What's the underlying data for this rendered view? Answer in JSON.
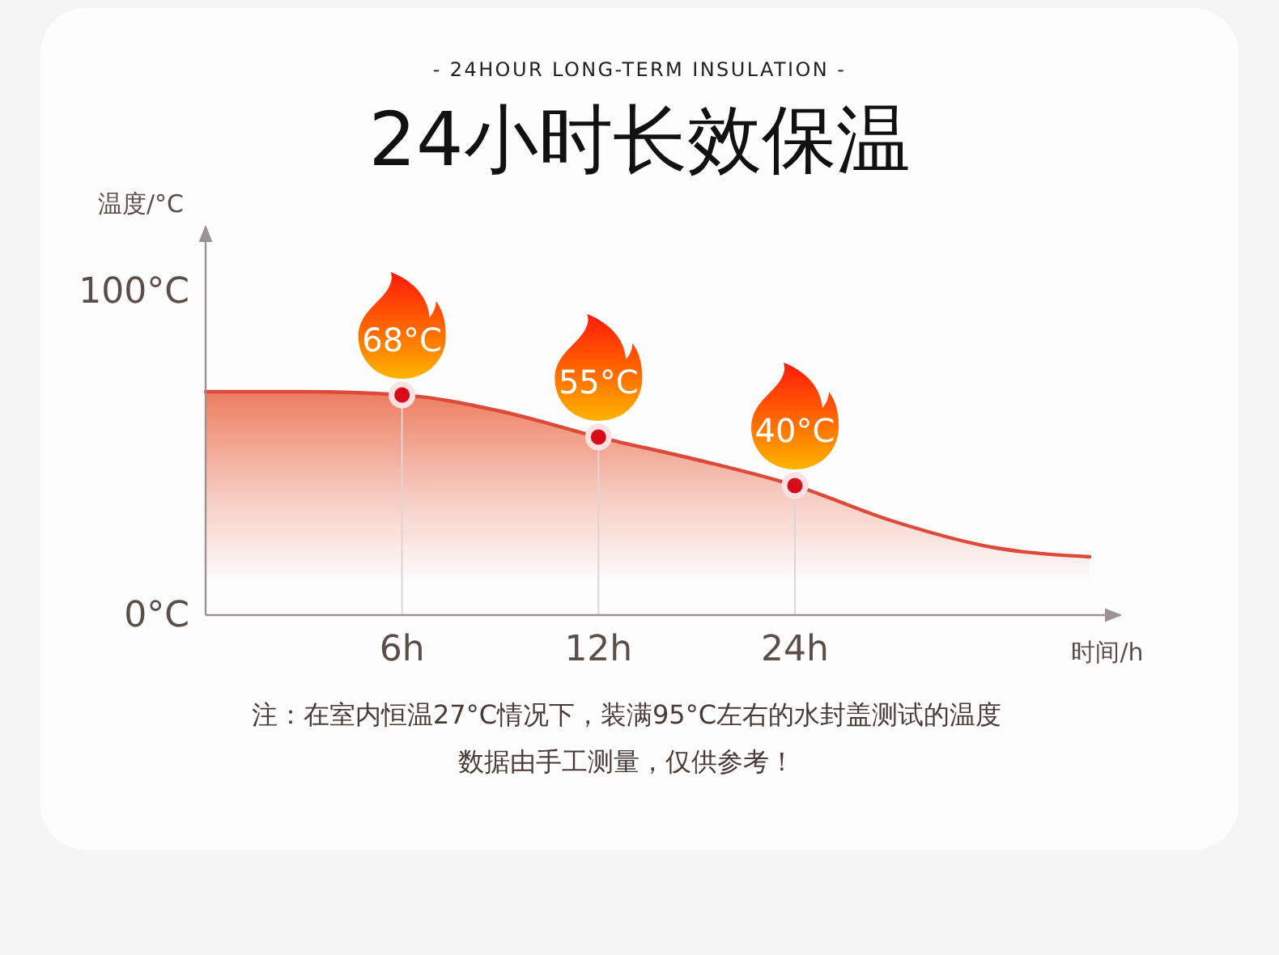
{
  "chart_data": {
    "type": "area",
    "title": "24小时长效保温",
    "subtitle": "- 24HOUR LONG-TERM INSULATION -",
    "xlabel": "时间/h",
    "ylabel": "温度/°C",
    "categories": [
      null,
      null,
      "6h",
      null,
      "12h",
      null,
      "24h",
      null,
      null,
      null
    ],
    "series": [
      {
        "color": "#de4a3a",
        "values": [
          69,
          69,
          68,
          63,
          55,
          48,
          40,
          29,
          21,
          18
        ]
      },
      {
        "type": "lollipop",
        "color": "#d80c18",
        "marker": "circle",
        "values": [
          null,
          null,
          68,
          null,
          55,
          null,
          40,
          null,
          null,
          null
        ],
        "value_labels": [
          null,
          null,
          "68°C",
          null,
          "55°C",
          null,
          "40°C",
          null,
          null,
          null
        ]
      }
    ],
    "ylim": [
      0,
      120
    ],
    "yticks": [
      {
        "value": 0,
        "label": "0°C"
      },
      {
        "value": 100,
        "label": "100°C"
      }
    ],
    "annotations": [
      "注：在室内恒温27°C情况下，装满95°C左右的水封盖测试的温度",
      "数据由手工测量，仅供参考！"
    ]
  }
}
